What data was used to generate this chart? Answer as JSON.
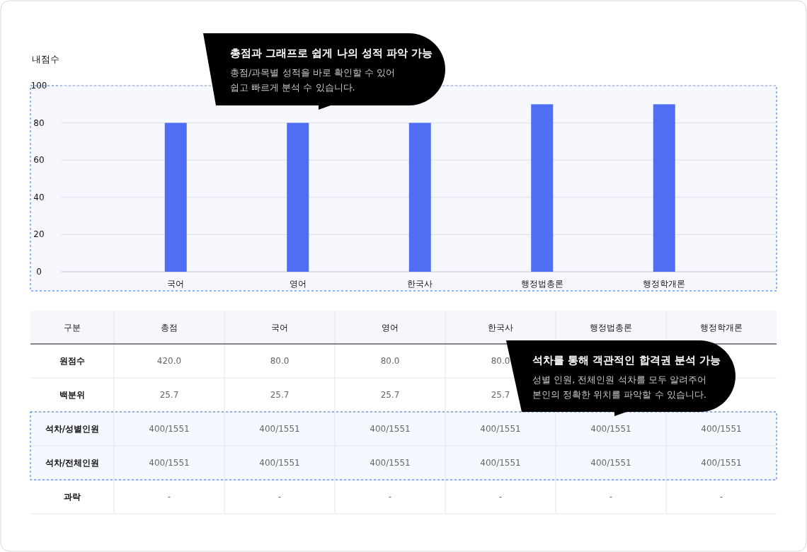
{
  "chart_data": [
    {
      "type": "bar",
      "ylabel": "내점수",
      "categories": [
        "국어",
        "영어",
        "한국사",
        "행정법총론",
        "행정학개론"
      ],
      "values": [
        80,
        80,
        80,
        90,
        90
      ],
      "color": "#506ef3",
      "ylim": [
        0,
        100
      ],
      "yticks": [
        0,
        20,
        40,
        60,
        80,
        100
      ],
      "grid": "y",
      "annotations": [
        "총점과 그래프로 쉽게 나의 성적 파악 가능",
        "총점/과목별 성적을 바로 확인할 수 있어",
        "쉽고 빠르게 분석 수 있습니다."
      ]
    },
    {
      "type": "other",
      "ylabel": "구분",
      "categories": [
        "총점",
        "국어",
        "영어",
        "한국사",
        "행정법총론",
        "행정학개론"
      ],
      "y_categories": [
        "원점수",
        "백분위",
        "석차/성별인원",
        "석차/전체인원",
        "과락"
      ],
      "cell_labels": [
        [
          "420.0",
          "80.0",
          "80.0",
          "80.0",
          null,
          null
        ],
        [
          "25.7",
          "25.7",
          "25.7",
          "25.7",
          null,
          null
        ],
        [
          "400/1551",
          "400/1551",
          "400/1551",
          "400/1551",
          "400/1551",
          "400/1551"
        ],
        [
          "400/1551",
          "400/1551",
          "400/1551",
          "400/1551",
          "400/1551",
          "400/1551"
        ],
        [
          "-",
          "-",
          "-",
          "-",
          "-",
          "-"
        ]
      ],
      "annotations": [
        "석차를 통해 객관적인 합격권 분석 가능",
        "성별 인원, 전체인원 석차를 모두 알려주어",
        "본인의 정확한 위치를 파악할 수 있습니다."
      ]
    }
  ]
}
